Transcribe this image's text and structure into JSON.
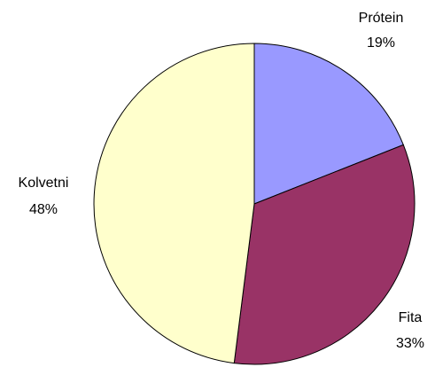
{
  "chart_data": {
    "type": "pie",
    "title": "",
    "start_angle_deg": 0,
    "direction": "clockwise",
    "slices": [
      {
        "label": "Prótein",
        "value": 19,
        "value_label": "19%",
        "color": "#9999FF"
      },
      {
        "label": "Fita",
        "value": 33,
        "value_label": "33%",
        "color": "#993366"
      },
      {
        "label": "Kolvetni",
        "value": 48,
        "value_label": "48%",
        "color": "#FFFFCC"
      }
    ]
  }
}
